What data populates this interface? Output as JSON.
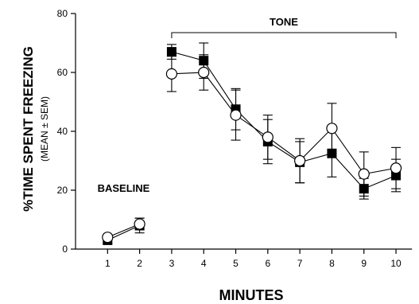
{
  "chart_data": {
    "type": "line",
    "xlabel": "MINUTES",
    "ylabel": "%TIME SPENT FREEZING",
    "ylabel_sub": "(MEAN ± SEM)",
    "x_ticks": [
      "1",
      "2",
      "3",
      "4",
      "5",
      "6",
      "7",
      "8",
      "9",
      "10"
    ],
    "y_ticks": [
      "0",
      "20",
      "40",
      "60",
      "80"
    ],
    "ylim": [
      0,
      80
    ],
    "xlim": [
      0,
      10.5
    ],
    "grid": false,
    "annotations": {
      "baseline": "BASELINE",
      "tone": "TONE",
      "tone_range": [
        3,
        10
      ]
    },
    "series": [
      {
        "marker": "filled-square",
        "segments": [
          [
            1,
            2
          ],
          [
            3,
            4,
            5,
            6,
            7,
            8,
            9,
            10
          ]
        ],
        "points": [
          {
            "x": 1,
            "y": 3,
            "err": 1
          },
          {
            "x": 2,
            "y": 8,
            "err": 2.5
          },
          {
            "x": 3,
            "y": 67,
            "err": 2.5
          },
          {
            "x": 4,
            "y": 64,
            "err": 6
          },
          {
            "x": 5,
            "y": 47.5,
            "err": 7
          },
          {
            "x": 6,
            "y": 36.5,
            "err": 7.5
          },
          {
            "x": 7,
            "y": 29.5,
            "err": 7
          },
          {
            "x": 8,
            "y": 32.5,
            "err": 8
          },
          {
            "x": 9,
            "y": 20.5,
            "err": 3.5
          },
          {
            "x": 10,
            "y": 25,
            "err": 5.5
          }
        ]
      },
      {
        "marker": "open-circle",
        "segments": [
          [
            1,
            2
          ],
          [
            3,
            4,
            5,
            6,
            7,
            8,
            9,
            10
          ]
        ],
        "points": [
          {
            "x": 1,
            "y": 4,
            "err": 1
          },
          {
            "x": 2,
            "y": 8.5,
            "err": 2
          },
          {
            "x": 3,
            "y": 59.5,
            "err": 6
          },
          {
            "x": 4,
            "y": 60,
            "err": 6
          },
          {
            "x": 5,
            "y": 45.5,
            "err": 8.5
          },
          {
            "x": 6,
            "y": 38,
            "err": 7.5
          },
          {
            "x": 7,
            "y": 30,
            "err": 7.5
          },
          {
            "x": 8,
            "y": 41,
            "err": 8.5
          },
          {
            "x": 9,
            "y": 25.5,
            "err": 7.5
          },
          {
            "x": 10,
            "y": 27.5,
            "err": 7
          }
        ]
      }
    ]
  }
}
